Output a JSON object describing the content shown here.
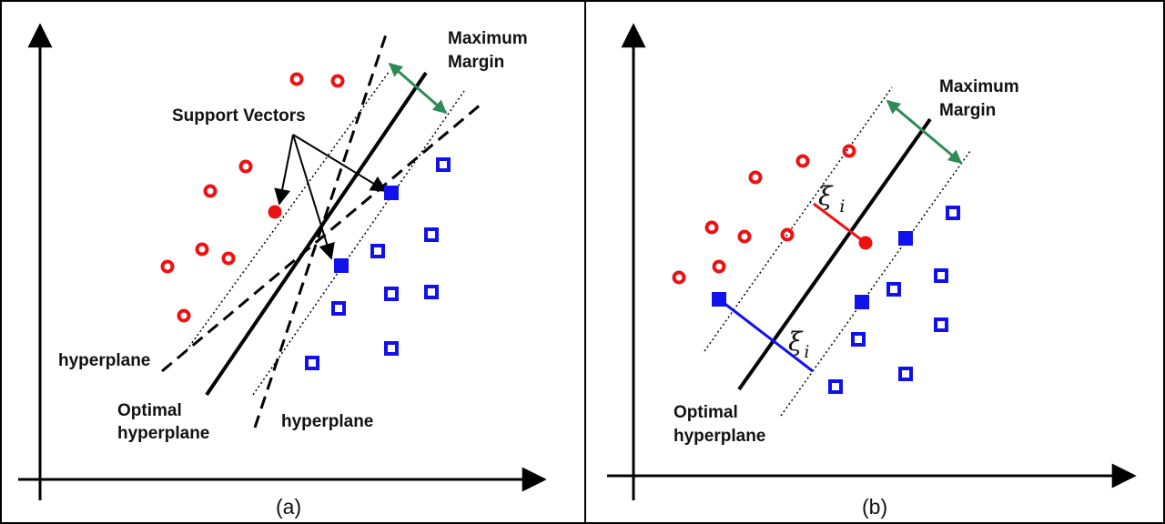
{
  "panel_a": {
    "caption": "(a)",
    "labels": {
      "maximum_margin_line1": "Maximum",
      "maximum_margin_line2": "Margin",
      "support_vectors": "Support Vectors",
      "hyperplane_left": "hyperplane",
      "optimal_line1": "Optimal",
      "optimal_line2": "hyperplane",
      "hyperplane_bottom": "hyperplane"
    }
  },
  "panel_b": {
    "caption": "(b)",
    "labels": {
      "maximum_margin_line1": "Maximum",
      "maximum_margin_line2": "Margin",
      "optimal_line1": "Optimal",
      "optimal_line2": "hyperplane",
      "slack_symbol": "ξ",
      "slack_subscript": "i"
    }
  },
  "colors": {
    "class_red": "#ee1111",
    "class_blue": "#1111ee",
    "margin_arrow": "#2e8b57",
    "lines": "#000000"
  }
}
